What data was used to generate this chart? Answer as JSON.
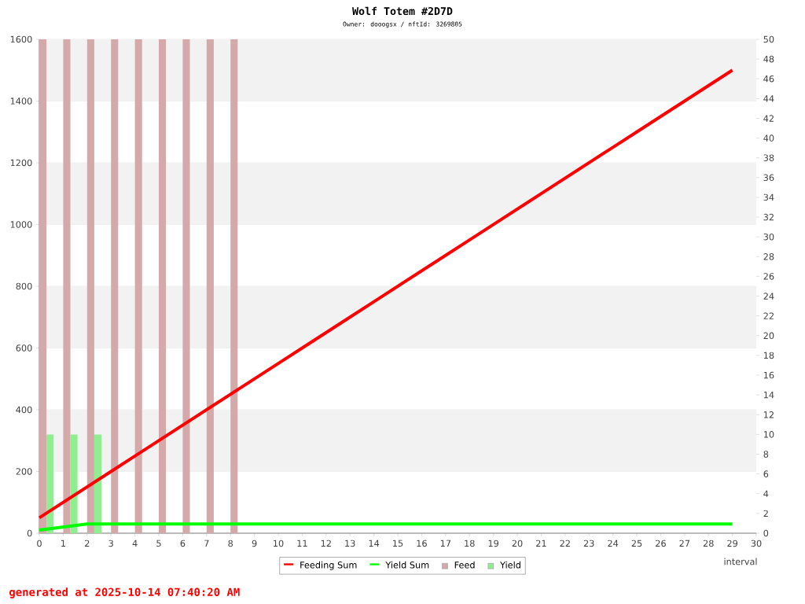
{
  "chart_data": {
    "type": "line",
    "title": "Wolf Totem #2D7D",
    "subtitle": "Owner: dooogsx / nftId: 3269805",
    "xlabel": "interval",
    "annotations": [
      "generated at 2025-10-14 07:40:20 AM"
    ],
    "xlim": [
      0,
      30
    ],
    "xticks": [
      0,
      1,
      2,
      3,
      4,
      5,
      6,
      7,
      8,
      9,
      10,
      11,
      12,
      13,
      14,
      15,
      16,
      17,
      18,
      19,
      20,
      21,
      22,
      23,
      24,
      25,
      26,
      27,
      28,
      29,
      30
    ],
    "ylim": [
      0,
      1600
    ],
    "yticks": [
      0,
      200,
      400,
      600,
      800,
      1000,
      1200,
      1400,
      1600
    ],
    "y2lim": [
      0,
      50
    ],
    "y2ticks": [
      0,
      2,
      4,
      6,
      8,
      10,
      12,
      14,
      16,
      18,
      20,
      22,
      24,
      26,
      28,
      30,
      32,
      34,
      36,
      38,
      40,
      42,
      44,
      46,
      48,
      50
    ],
    "grid": "y",
    "legend": "bottom",
    "series": [
      {
        "name": "Feeding Sum",
        "color": "#ff0000",
        "x": [
          0,
          1,
          2,
          3,
          4,
          5,
          6,
          7,
          8,
          9,
          10,
          11,
          12,
          13,
          14,
          15,
          16,
          17,
          18,
          19,
          20,
          21,
          22,
          23,
          24,
          25,
          26,
          27,
          28,
          29
        ],
        "values": [
          50,
          100,
          150,
          200,
          250,
          300,
          350,
          400,
          450,
          500,
          550,
          600,
          650,
          700,
          750,
          800,
          850,
          900,
          950,
          1000,
          1050,
          1100,
          1150,
          1200,
          1250,
          1300,
          1350,
          1400,
          1450,
          1500
        ]
      },
      {
        "name": "Yield Sum",
        "color": "#00ff00",
        "x": [
          0,
          1,
          2,
          3,
          4,
          5,
          6,
          7,
          8,
          9,
          10,
          11,
          12,
          13,
          14,
          15,
          16,
          17,
          18,
          19,
          20,
          21,
          22,
          23,
          24,
          25,
          26,
          27,
          28,
          29
        ],
        "values": [
          10,
          20,
          30,
          30,
          30,
          30,
          30,
          30,
          30,
          30,
          30,
          30,
          30,
          30,
          30,
          30,
          30,
          30,
          30,
          30,
          30,
          30,
          30,
          30,
          30,
          30,
          30,
          30,
          30,
          30
        ]
      },
      {
        "name": "Feed",
        "type": "bar",
        "axis": "y2",
        "color": "#d4a9a9",
        "x": [
          0,
          1,
          2,
          3,
          4,
          5,
          6,
          7,
          8
        ],
        "values": [
          50,
          50,
          50,
          50,
          50,
          50,
          50,
          50,
          50
        ]
      },
      {
        "name": "Yield",
        "type": "bar",
        "axis": "y2",
        "color": "#90ee90",
        "x": [
          0,
          1,
          2
        ],
        "values": [
          10,
          10,
          10
        ]
      }
    ]
  }
}
